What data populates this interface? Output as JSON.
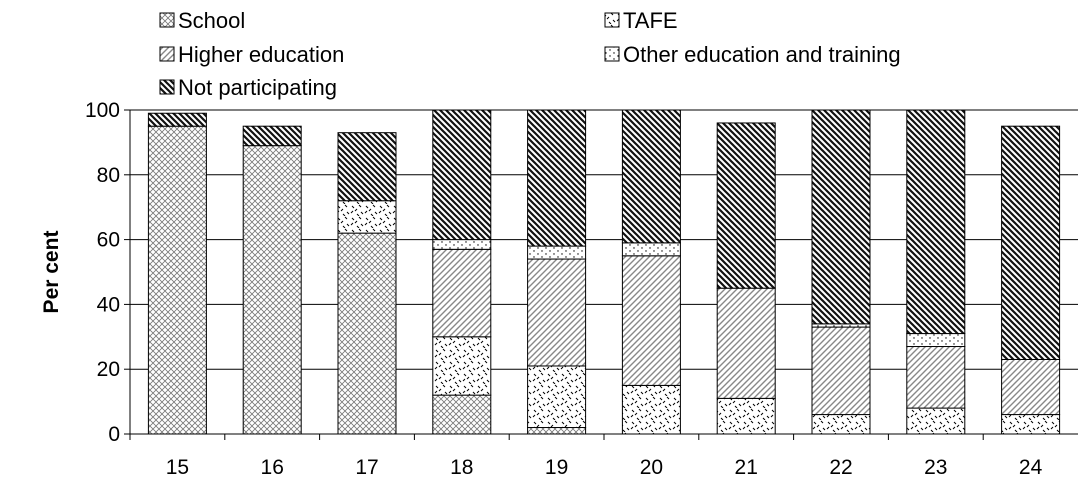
{
  "chart_data": {
    "type": "bar",
    "stacked": true,
    "title": "",
    "xlabel": "",
    "ylabel": "Per cent",
    "ylim": [
      0,
      100
    ],
    "yticks": [
      "0",
      "20",
      "40",
      "60",
      "80",
      "100"
    ],
    "categories": [
      "15",
      "16",
      "17",
      "18",
      "19",
      "20",
      "21",
      "22",
      "23",
      "24"
    ],
    "grid": "horizontal",
    "legend_position": "top",
    "series": [
      {
        "name": "School",
        "pattern": "crosshatch",
        "values": [
          95,
          89,
          62,
          12,
          2,
          0,
          0,
          0,
          0,
          0
        ]
      },
      {
        "name": "TAFE",
        "pattern": "scattered-dashes",
        "values": [
          0,
          0,
          10,
          18,
          19,
          15,
          11,
          6,
          8,
          6
        ]
      },
      {
        "name": "Higher education",
        "pattern": "diagonal-light",
        "values": [
          0,
          0,
          0,
          27,
          33,
          40,
          34,
          27,
          19,
          17
        ]
      },
      {
        "name": "Other education and training",
        "pattern": "dots",
        "values": [
          0,
          0,
          0,
          3,
          4,
          4,
          0,
          1,
          4,
          0
        ]
      },
      {
        "name": "Not participating",
        "pattern": "diagonal-dark",
        "values": [
          4,
          6,
          21,
          40,
          42,
          41,
          51,
          66,
          69,
          72
        ]
      }
    ]
  }
}
